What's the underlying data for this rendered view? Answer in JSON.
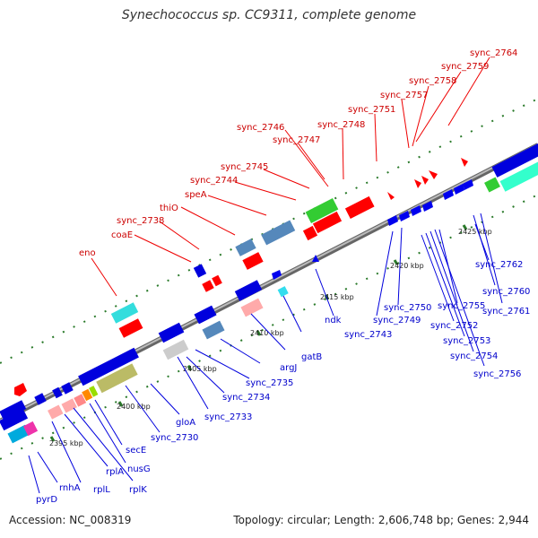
{
  "title": "Synechococcus sp. CC9311, complete genome",
  "accession": "Accession: NC_008319",
  "summary": "Topology: circular; Length: 2,606,748 bp; Genes: 2,944",
  "colors": {
    "forward_label": "#cc0000",
    "reverse_label": "#0000cc",
    "backbone": "#999999",
    "tick": "#2a7a2a"
  },
  "scale_labels": [
    "2395 kbp",
    "2400 kbp",
    "2405 kbp",
    "2410 kbp",
    "2415 kbp",
    "2420 kbp",
    "2425 kbp"
  ],
  "forward_labels": [
    "eno",
    "coaE",
    "sync_2738",
    "thiO",
    "speA",
    "sync_2744",
    "sync_2745",
    "sync_2746",
    "sync_2747",
    "sync_2748",
    "sync_2751",
    "sync_2757",
    "sync_2758",
    "sync_2759",
    "sync_2764"
  ],
  "reverse_labels": [
    "pyrD",
    "rnhA",
    "rplL",
    "rplA",
    "rplK",
    "nusG",
    "secE",
    "sync_2730",
    "gloA",
    "sync_2733",
    "sync_2734",
    "sync_2735",
    "argJ",
    "gatB",
    "ndk",
    "sync_2743",
    "sync_2749",
    "sync_2750",
    "sync_2752",
    "sync_2753",
    "sync_2754",
    "sync_2755",
    "sync_2756",
    "sync_2760",
    "sync_2761",
    "sync_2762"
  ]
}
